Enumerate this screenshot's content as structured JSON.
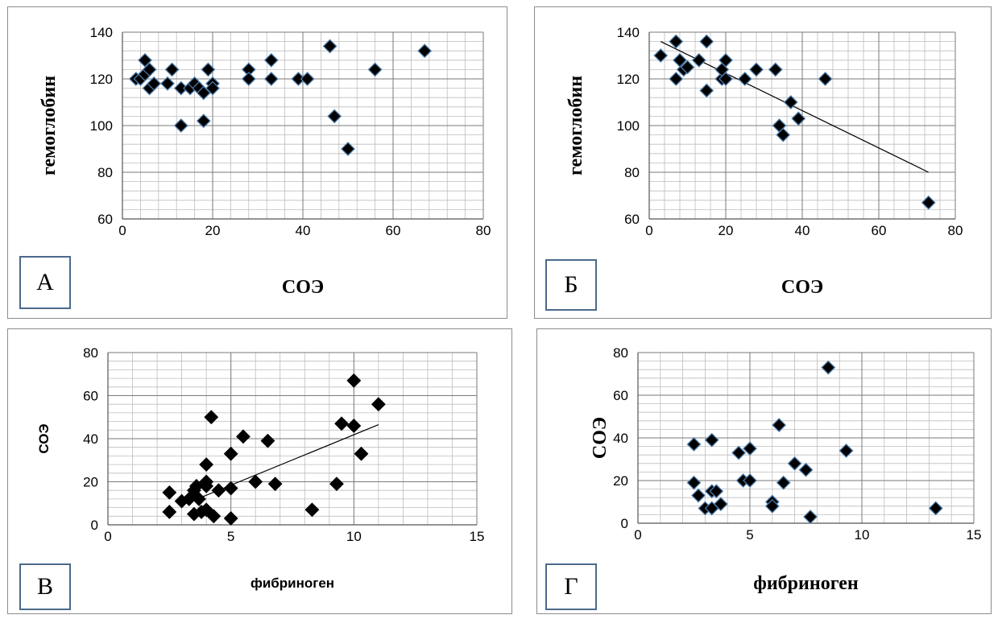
{
  "chart_data": [
    {
      "panel": "A",
      "type": "scatter",
      "panel_label": "А",
      "xlabel": "СОЭ",
      "ylabel": "гемоглобин",
      "xlim": [
        0,
        80
      ],
      "ylim": [
        60,
        140
      ],
      "xticks": [
        0,
        20,
        40,
        60,
        80
      ],
      "yticks": [
        60,
        80,
        100,
        120,
        140
      ],
      "grid": true,
      "trendline": null,
      "marker_color": "#000000",
      "marker_edge": "#4a7aa8",
      "points": [
        [
          3,
          120
        ],
        [
          4,
          120
        ],
        [
          5,
          128
        ],
        [
          5,
          122
        ],
        [
          6,
          124
        ],
        [
          6,
          116
        ],
        [
          7,
          118
        ],
        [
          10,
          118
        ],
        [
          11,
          124
        ],
        [
          13,
          100
        ],
        [
          13,
          116
        ],
        [
          15,
          116
        ],
        [
          16,
          118
        ],
        [
          17,
          116
        ],
        [
          18,
          102
        ],
        [
          18,
          114
        ],
        [
          19,
          124
        ],
        [
          20,
          118
        ],
        [
          20,
          116
        ],
        [
          28,
          124
        ],
        [
          28,
          120
        ],
        [
          33,
          128
        ],
        [
          33,
          120
        ],
        [
          39,
          120
        ],
        [
          41,
          120
        ],
        [
          46,
          134
        ],
        [
          47,
          104
        ],
        [
          50,
          90
        ],
        [
          56,
          124
        ],
        [
          67,
          132
        ]
      ]
    },
    {
      "panel": "B",
      "type": "scatter",
      "panel_label": "Б",
      "xlabel": "СОЭ",
      "ylabel": "гемоглобин",
      "xlim": [
        0,
        80
      ],
      "ylim": [
        60,
        140
      ],
      "xticks": [
        0,
        20,
        40,
        60,
        80
      ],
      "yticks": [
        60,
        80,
        100,
        120,
        140
      ],
      "grid": true,
      "trendline": [
        [
          3,
          136
        ],
        [
          73,
          80
        ]
      ],
      "marker_color": "#000000",
      "marker_edge": "#4a7aa8",
      "points": [
        [
          3,
          130
        ],
        [
          7,
          136
        ],
        [
          7,
          120
        ],
        [
          8,
          128
        ],
        [
          9,
          124
        ],
        [
          10,
          125
        ],
        [
          13,
          128
        ],
        [
          15,
          136
        ],
        [
          15,
          115
        ],
        [
          19,
          120
        ],
        [
          19,
          124
        ],
        [
          20,
          128
        ],
        [
          20,
          120
        ],
        [
          25,
          120
        ],
        [
          28,
          124
        ],
        [
          33,
          124
        ],
        [
          34,
          100
        ],
        [
          35,
          96
        ],
        [
          37,
          110
        ],
        [
          39,
          103
        ],
        [
          46,
          120
        ],
        [
          73,
          67
        ]
      ]
    },
    {
      "panel": "C",
      "type": "scatter",
      "panel_label": "В",
      "xlabel": "фибриноген",
      "ylabel": "СОЭ",
      "xlim": [
        0,
        15
      ],
      "ylim": [
        0,
        80
      ],
      "xticks": [
        0,
        5,
        10,
        15
      ],
      "yticks": [
        0,
        20,
        40,
        60,
        80
      ],
      "grid": true,
      "trendline": [
        [
          3.2,
          10
        ],
        [
          11,
          46.5
        ]
      ],
      "marker_color": "#000000",
      "marker_edge": "#000000",
      "points": [
        [
          2.5,
          15
        ],
        [
          2.5,
          6
        ],
        [
          3,
          11
        ],
        [
          3.3,
          12
        ],
        [
          3.5,
          5
        ],
        [
          3.5,
          16
        ],
        [
          3.6,
          18
        ],
        [
          3.7,
          12
        ],
        [
          3.8,
          6
        ],
        [
          4,
          20
        ],
        [
          4,
          28
        ],
        [
          4,
          18
        ],
        [
          4,
          7
        ],
        [
          4.2,
          50
        ],
        [
          4.3,
          4
        ],
        [
          4.5,
          16
        ],
        [
          5,
          33
        ],
        [
          5,
          17
        ],
        [
          5,
          3
        ],
        [
          5.5,
          41
        ],
        [
          6,
          20
        ],
        [
          6.5,
          39
        ],
        [
          6.8,
          19
        ],
        [
          8.3,
          7
        ],
        [
          9.3,
          19
        ],
        [
          9.5,
          47
        ],
        [
          10,
          46
        ],
        [
          10,
          67
        ],
        [
          10.3,
          33
        ],
        [
          11,
          56
        ]
      ]
    },
    {
      "panel": "D",
      "type": "scatter",
      "panel_label": "Г",
      "xlabel": "фибриноген",
      "ylabel": "СОЭ",
      "xlim": [
        0,
        15
      ],
      "ylim": [
        0,
        80
      ],
      "xticks": [
        0,
        5,
        10,
        15
      ],
      "yticks": [
        0,
        20,
        40,
        60,
        80
      ],
      "grid": true,
      "trendline": null,
      "marker_color": "#000000",
      "marker_edge": "#4a7aa8",
      "points": [
        [
          2.5,
          37
        ],
        [
          2.5,
          19
        ],
        [
          2.7,
          13
        ],
        [
          3,
          7
        ],
        [
          3.3,
          39
        ],
        [
          3.3,
          15
        ],
        [
          3.3,
          7
        ],
        [
          3.5,
          15
        ],
        [
          3.7,
          9
        ],
        [
          4.5,
          33
        ],
        [
          4.7,
          20
        ],
        [
          5,
          35
        ],
        [
          5,
          20
        ],
        [
          6,
          10
        ],
        [
          6,
          8
        ],
        [
          6.3,
          46
        ],
        [
          6.5,
          19
        ],
        [
          7,
          28
        ],
        [
          7.5,
          25
        ],
        [
          7.7,
          3
        ],
        [
          8.5,
          73
        ],
        [
          9.3,
          34
        ],
        [
          13.3,
          7
        ]
      ]
    }
  ]
}
